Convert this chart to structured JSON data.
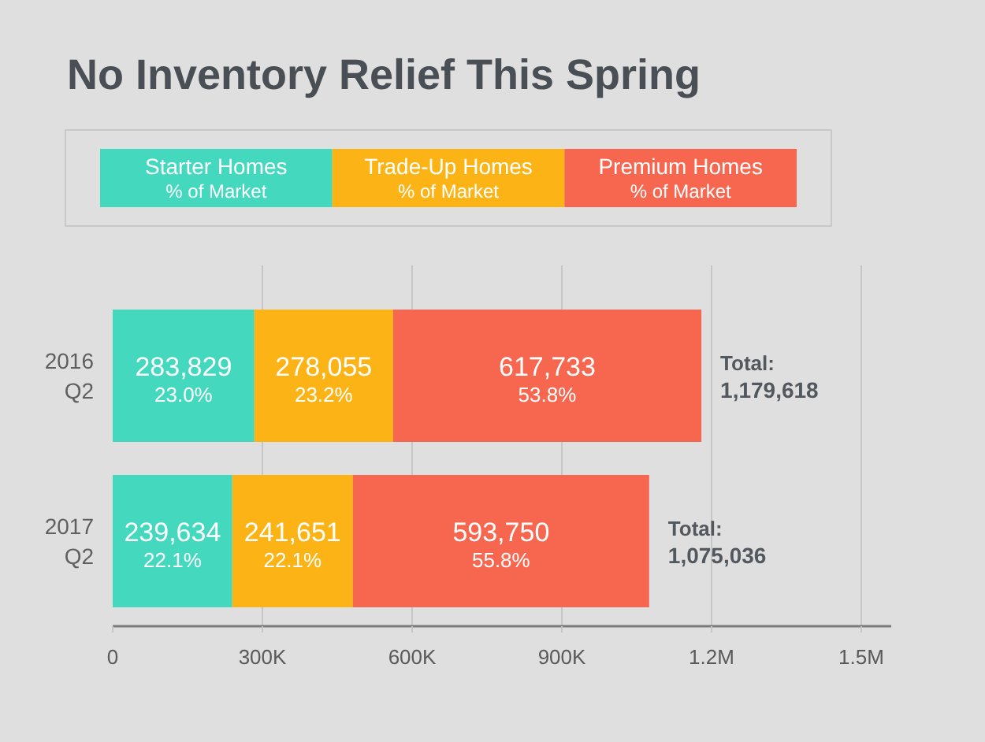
{
  "chart_data": {
    "type": "bar",
    "orientation": "horizontal",
    "stacked": true,
    "title": "No Inventory Relief This Spring",
    "categories": [
      "2016\nQ2",
      "2017\nQ2"
    ],
    "series": [
      {
        "name": "Starter Homes\n% of Market",
        "color": "#44d9be",
        "values": [
          283829,
          239634
        ],
        "value_labels": [
          "283,829\n23.0%",
          "239,634\n22.1%"
        ]
      },
      {
        "name": "Trade-Up Homes\n% of Market",
        "color": "#fcb315",
        "values": [
          278055,
          241651
        ],
        "value_labels": [
          "278,055\n23.2%",
          "241,651\n22.1%"
        ]
      },
      {
        "name": "Premium Homes\n% of Market",
        "color": "#f7664e",
        "values": [
          617733,
          593750
        ],
        "value_labels": [
          "617,733\n53.8%",
          "593,750\n55.8%"
        ]
      }
    ],
    "totals": [
      "Total:\n1,179,618",
      "Total:\n1,075,036"
    ],
    "xlim": [
      0,
      1560000
    ],
    "xticks": [
      0,
      {
        "value": 300000,
        "label": "300K"
      },
      {
        "value": 600000,
        "label": "600K"
      },
      {
        "value": 900000,
        "label": "900K"
      },
      {
        "value": 1200000,
        "label": "1.2M"
      },
      {
        "value": 1500000,
        "label": "1.5M"
      }
    ],
    "grid": "x",
    "legend": "top"
  }
}
